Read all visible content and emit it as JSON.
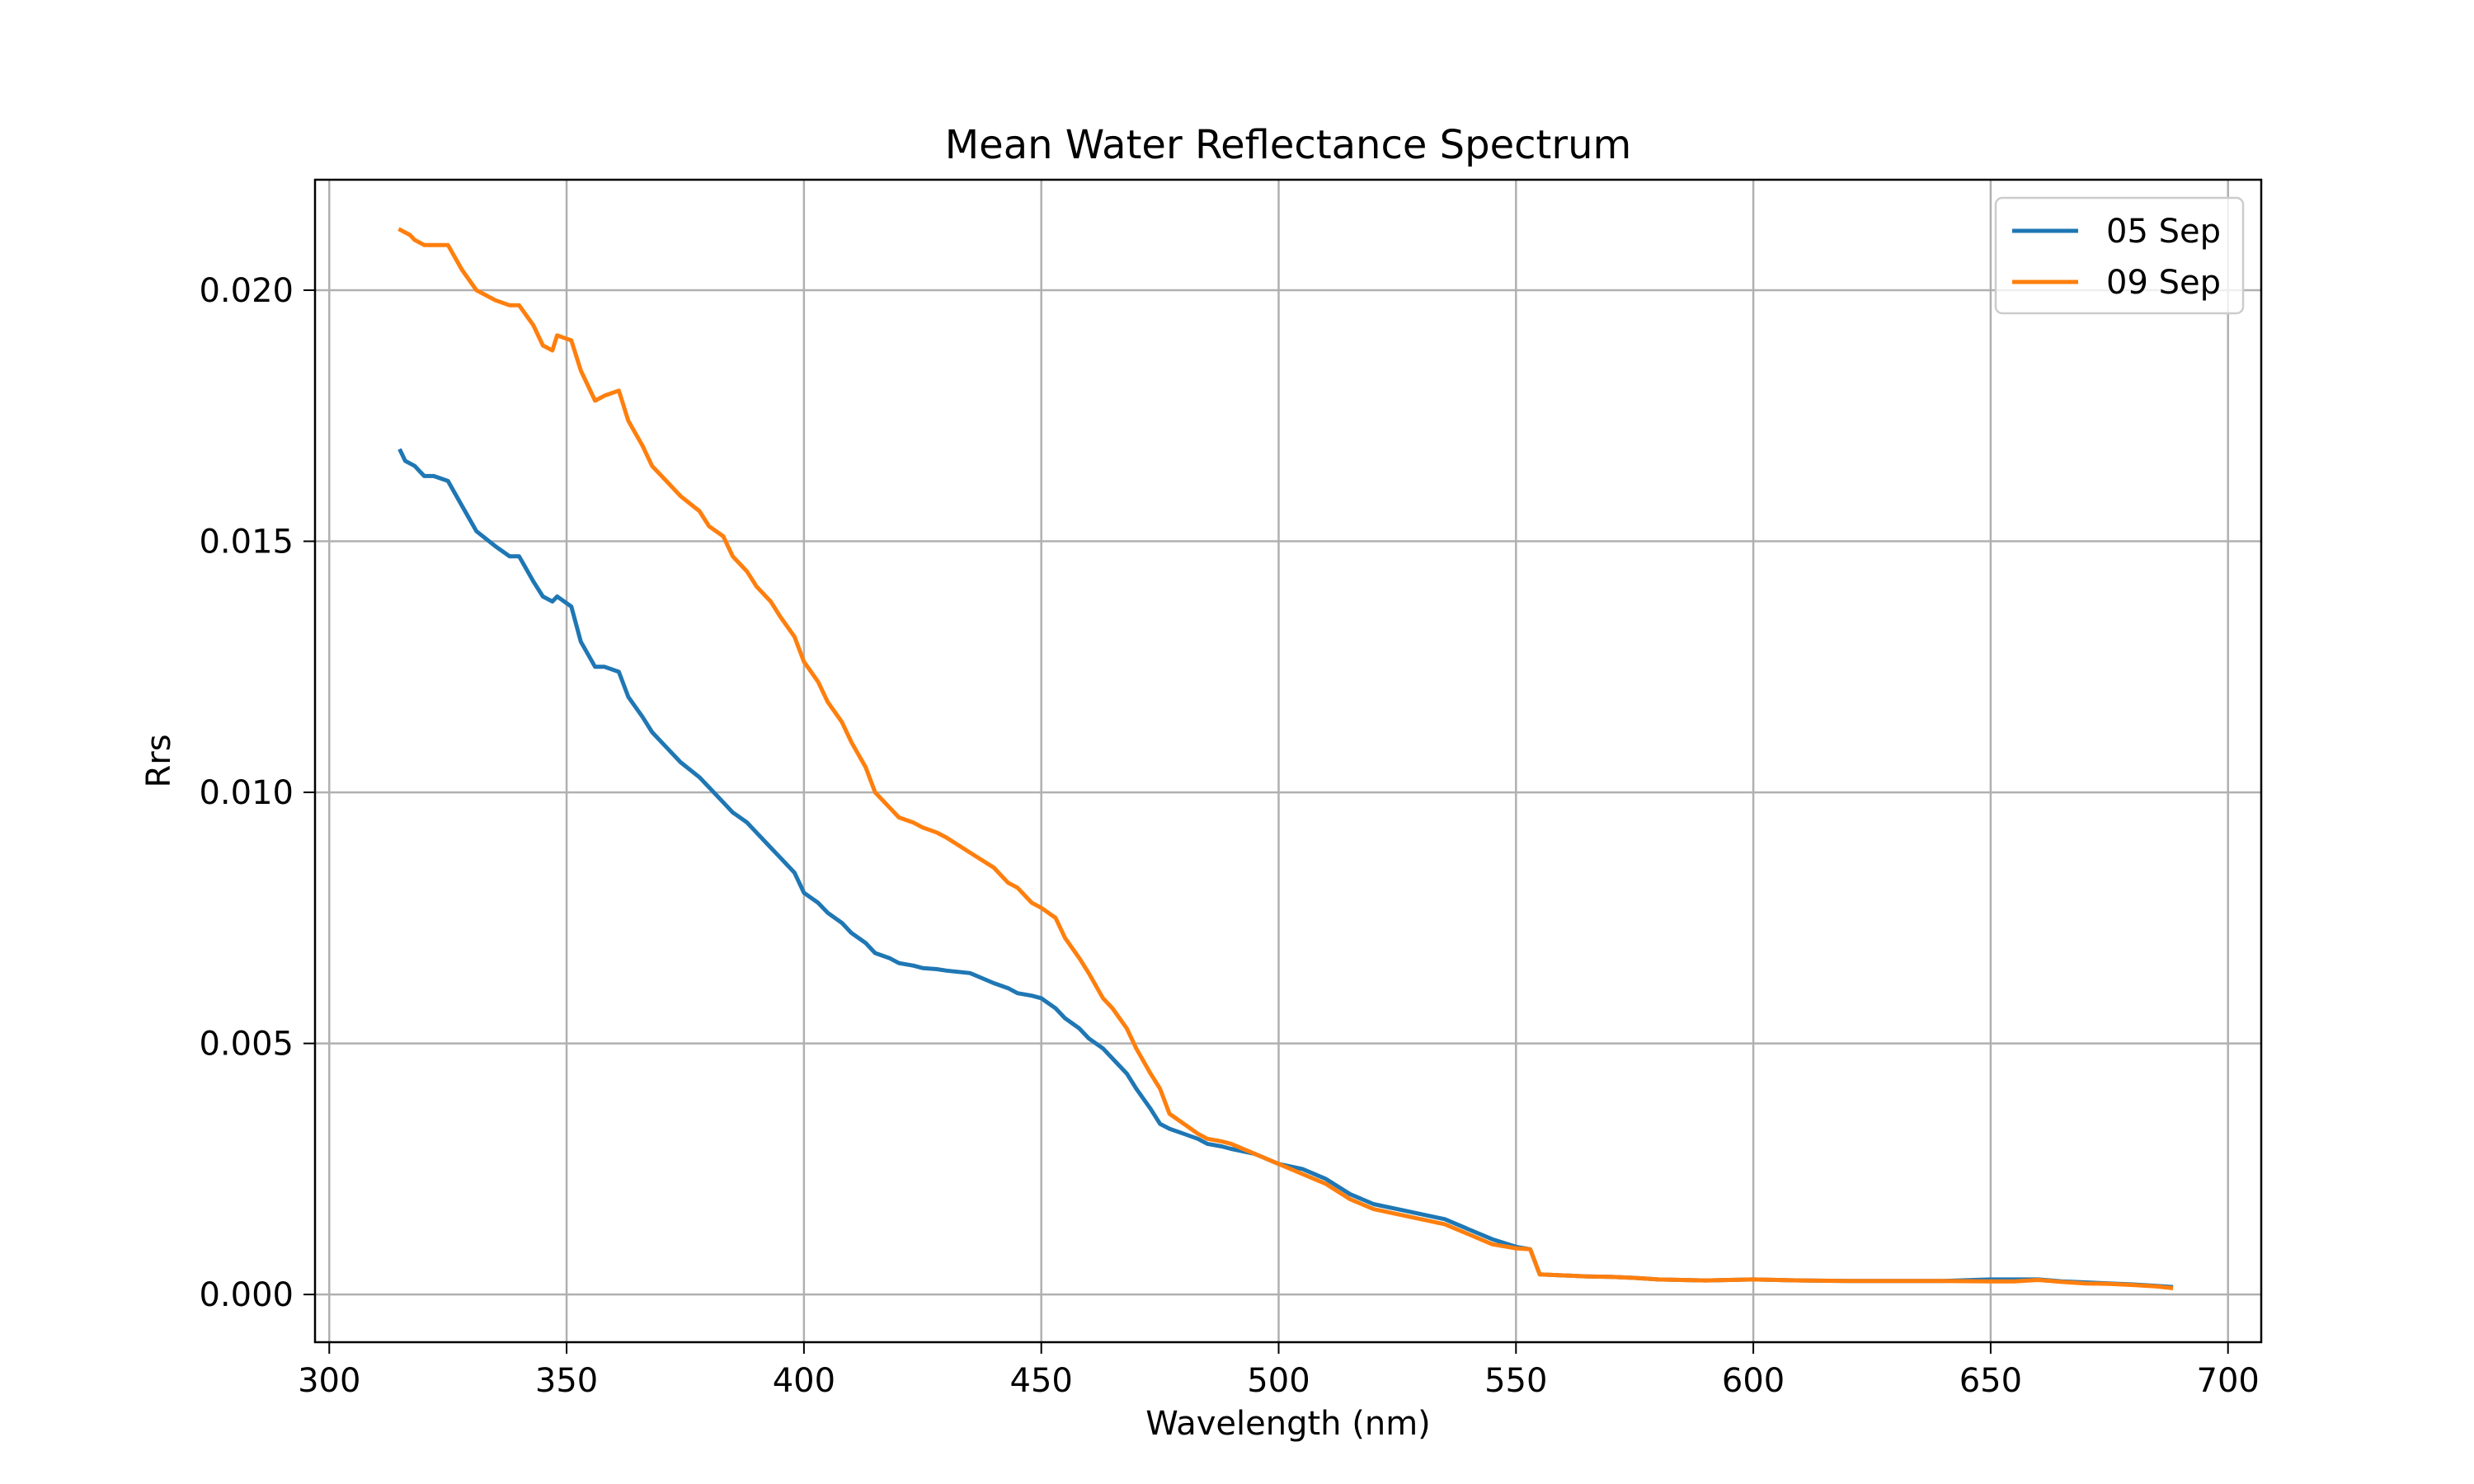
{
  "chart_data": {
    "type": "line",
    "title": "Mean Water Reflectance Spectrum",
    "xlabel": "Wavelength (nm)",
    "ylabel": "Rrs",
    "xlim": [
      297,
      707
    ],
    "ylim": [
      -0.00095,
      0.0222
    ],
    "xticks": [
      300,
      350,
      400,
      450,
      500,
      550,
      600,
      650,
      700
    ],
    "xtick_labels": [
      "300",
      "350",
      "400",
      "450",
      "500",
      "550",
      "600",
      "650",
      "700"
    ],
    "yticks": [
      0.0,
      0.005,
      0.01,
      0.015,
      0.02
    ],
    "ytick_labels": [
      "0.000",
      "0.005",
      "0.010",
      "0.015",
      "0.020"
    ],
    "grid": true,
    "legend_position": "top-right",
    "series": [
      {
        "name": "05 Sep",
        "color": "#1f77b4",
        "x": [
          315,
          316,
          318,
          320,
          322,
          325,
          328,
          331,
          335,
          338,
          340,
          343,
          345,
          347,
          348,
          351,
          353,
          356,
          358,
          361,
          363,
          366,
          368,
          371,
          374,
          378,
          380,
          383,
          385,
          388,
          390,
          393,
          395,
          398,
          400,
          403,
          405,
          408,
          410,
          413,
          415,
          418,
          420,
          423,
          425,
          428,
          430,
          435,
          440,
          443,
          445,
          448,
          450,
          453,
          455,
          458,
          460,
          463,
          465,
          468,
          470,
          473,
          475,
          477,
          480,
          483,
          485,
          488,
          490,
          495,
          500,
          505,
          510,
          515,
          520,
          525,
          530,
          535,
          540,
          545,
          550,
          553,
          555,
          560,
          565,
          570,
          575,
          580,
          590,
          600,
          610,
          620,
          630,
          640,
          650,
          660,
          665,
          670,
          675,
          680,
          685,
          688
        ],
        "values": [
          0.0168,
          0.0166,
          0.0165,
          0.0163,
          0.0163,
          0.0162,
          0.0157,
          0.0152,
          0.0149,
          0.0147,
          0.0147,
          0.0142,
          0.0139,
          0.0138,
          0.0139,
          0.0137,
          0.013,
          0.0125,
          0.0125,
          0.0124,
          0.0119,
          0.0115,
          0.0112,
          0.0109,
          0.0106,
          0.0103,
          0.0101,
          0.0098,
          0.0096,
          0.0094,
          0.0092,
          0.0089,
          0.0087,
          0.0084,
          0.008,
          0.0078,
          0.0076,
          0.0074,
          0.0072,
          0.007,
          0.0068,
          0.0067,
          0.0066,
          0.00655,
          0.0065,
          0.00648,
          0.00645,
          0.0064,
          0.0062,
          0.0061,
          0.006,
          0.00595,
          0.0059,
          0.0057,
          0.0055,
          0.0053,
          0.0051,
          0.0049,
          0.0047,
          0.0044,
          0.0041,
          0.0037,
          0.0034,
          0.0033,
          0.0032,
          0.0031,
          0.003,
          0.00295,
          0.0029,
          0.0028,
          0.0026,
          0.0025,
          0.0023,
          0.002,
          0.0018,
          0.0017,
          0.0016,
          0.0015,
          0.0013,
          0.0011,
          0.00095,
          0.0009,
          0.0004,
          0.00038,
          0.00036,
          0.00035,
          0.00033,
          0.0003,
          0.00028,
          0.0003,
          0.00028,
          0.00027,
          0.00027,
          0.00027,
          0.0003,
          0.0003,
          0.00026,
          0.00024,
          0.00022,
          0.0002,
          0.00017,
          0.00015
        ]
      },
      {
        "name": "09 Sep",
        "color": "#ff7f0e",
        "x": [
          315,
          317,
          318,
          320,
          322,
          325,
          328,
          331,
          335,
          338,
          340,
          343,
          345,
          347,
          348,
          351,
          353,
          356,
          358,
          361,
          363,
          366,
          368,
          371,
          374,
          378,
          380,
          383,
          385,
          388,
          390,
          393,
          395,
          398,
          400,
          403,
          405,
          408,
          410,
          413,
          415,
          418,
          420,
          423,
          425,
          428,
          430,
          435,
          440,
          443,
          445,
          448,
          450,
          453,
          455,
          458,
          460,
          463,
          465,
          468,
          470,
          473,
          475,
          477,
          480,
          483,
          485,
          488,
          490,
          495,
          500,
          505,
          510,
          515,
          520,
          525,
          530,
          535,
          540,
          545,
          550,
          553,
          555,
          560,
          565,
          570,
          575,
          580,
          590,
          600,
          610,
          620,
          630,
          640,
          650,
          655,
          660,
          665,
          670,
          675,
          680,
          685,
          688
        ],
        "values": [
          0.0212,
          0.0211,
          0.021,
          0.0209,
          0.0209,
          0.0209,
          0.0204,
          0.02,
          0.0198,
          0.0197,
          0.0197,
          0.0193,
          0.0189,
          0.0188,
          0.0191,
          0.019,
          0.0184,
          0.0178,
          0.0179,
          0.018,
          0.0174,
          0.0169,
          0.0165,
          0.0162,
          0.0159,
          0.0156,
          0.0153,
          0.0151,
          0.0147,
          0.0144,
          0.0141,
          0.0138,
          0.0135,
          0.0131,
          0.0126,
          0.0122,
          0.0118,
          0.0114,
          0.011,
          0.0105,
          0.01,
          0.0097,
          0.0095,
          0.0094,
          0.0093,
          0.0092,
          0.0091,
          0.0088,
          0.0085,
          0.0082,
          0.0081,
          0.0078,
          0.0077,
          0.0075,
          0.0071,
          0.0067,
          0.0064,
          0.0059,
          0.0057,
          0.0053,
          0.0049,
          0.0044,
          0.0041,
          0.0036,
          0.0034,
          0.0032,
          0.0031,
          0.00305,
          0.003,
          0.0028,
          0.0026,
          0.0024,
          0.0022,
          0.0019,
          0.0017,
          0.0016,
          0.0015,
          0.0014,
          0.0012,
          0.001,
          0.00092,
          0.0009,
          0.0004,
          0.00038,
          0.00036,
          0.00035,
          0.00033,
          0.0003,
          0.00028,
          0.0003,
          0.00028,
          0.00027,
          0.00027,
          0.00027,
          0.00026,
          0.00026,
          0.00029,
          0.00025,
          0.00022,
          0.00021,
          0.00019,
          0.00016,
          0.00013
        ]
      }
    ]
  }
}
